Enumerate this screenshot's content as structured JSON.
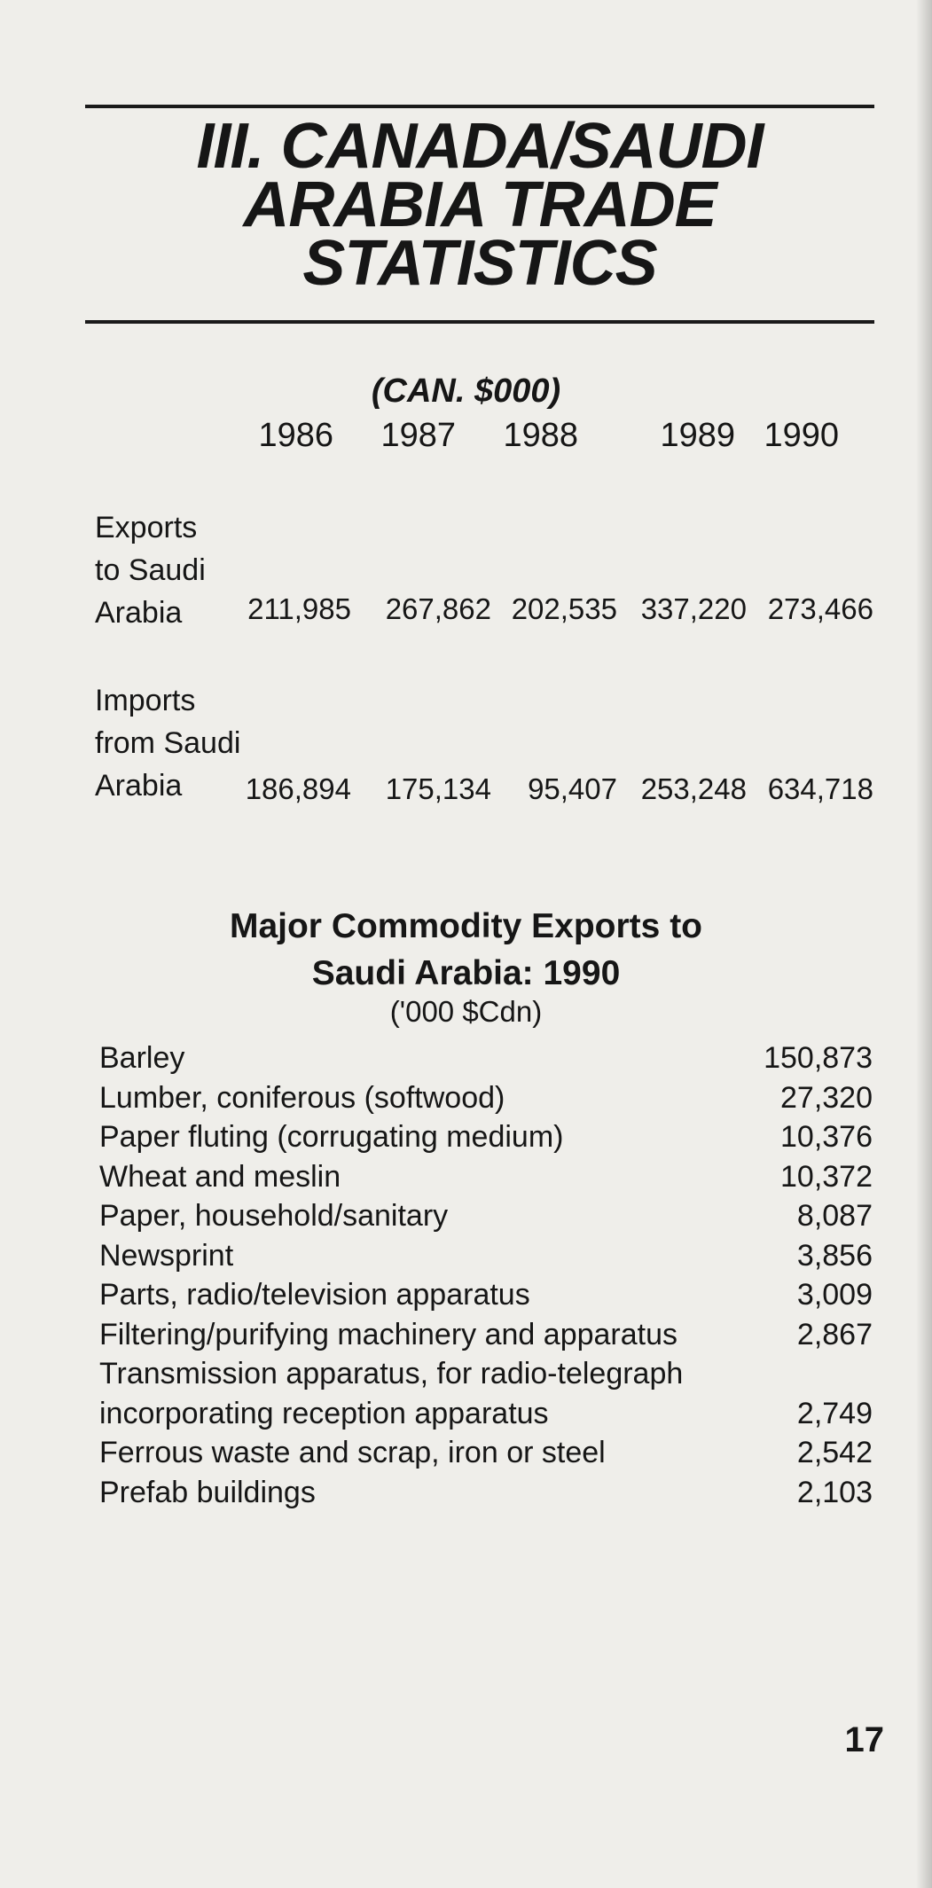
{
  "section_title": [
    "III. CANADA/SAUDI",
    "ARABIA TRADE",
    "STATISTICS"
  ],
  "trade_table": {
    "units": "(CAN. $000)",
    "years": [
      "1986",
      "1987",
      "1988",
      "1989",
      "1990"
    ],
    "rows": [
      {
        "label": [
          "Exports",
          "to Saudi",
          "Arabia"
        ],
        "values": [
          "211,985",
          "267,862",
          "202,535",
          "337,220",
          "273,466"
        ]
      },
      {
        "label": [
          "Imports",
          "from Saudi",
          "Arabia"
        ],
        "values": [
          "186,894",
          "175,134",
          "95,407",
          "253,248",
          "634,718"
        ]
      }
    ]
  },
  "commodities": {
    "title": [
      "Major Commodity Exports to",
      "Saudi Arabia: 1990"
    ],
    "subtitle": "('000 $Cdn)",
    "items": [
      {
        "name": "Barley",
        "value": "150,873"
      },
      {
        "name": "Lumber, coniferous (softwood)",
        "value": "27,320"
      },
      {
        "name": "Paper fluting (corrugating medium)",
        "value": "10,376"
      },
      {
        "name": "Wheat and meslin",
        "value": "10,372"
      },
      {
        "name": "Paper, household/sanitary",
        "value": "8,087"
      },
      {
        "name": "Newsprint",
        "value": "3,856"
      },
      {
        "name": "Parts, radio/television apparatus",
        "value": "3,009"
      },
      {
        "name": "Filtering/purifying machinery and apparatus",
        "value": "2,867"
      },
      {
        "name": "Transmission apparatus, for radio-telegraph incorporating reception apparatus",
        "value": "2,749"
      },
      {
        "name": "Ferrous waste and scrap, iron or steel",
        "value": "2,542"
      },
      {
        "name": "Prefab buildings",
        "value": "2,103"
      }
    ]
  },
  "page_number": "17"
}
